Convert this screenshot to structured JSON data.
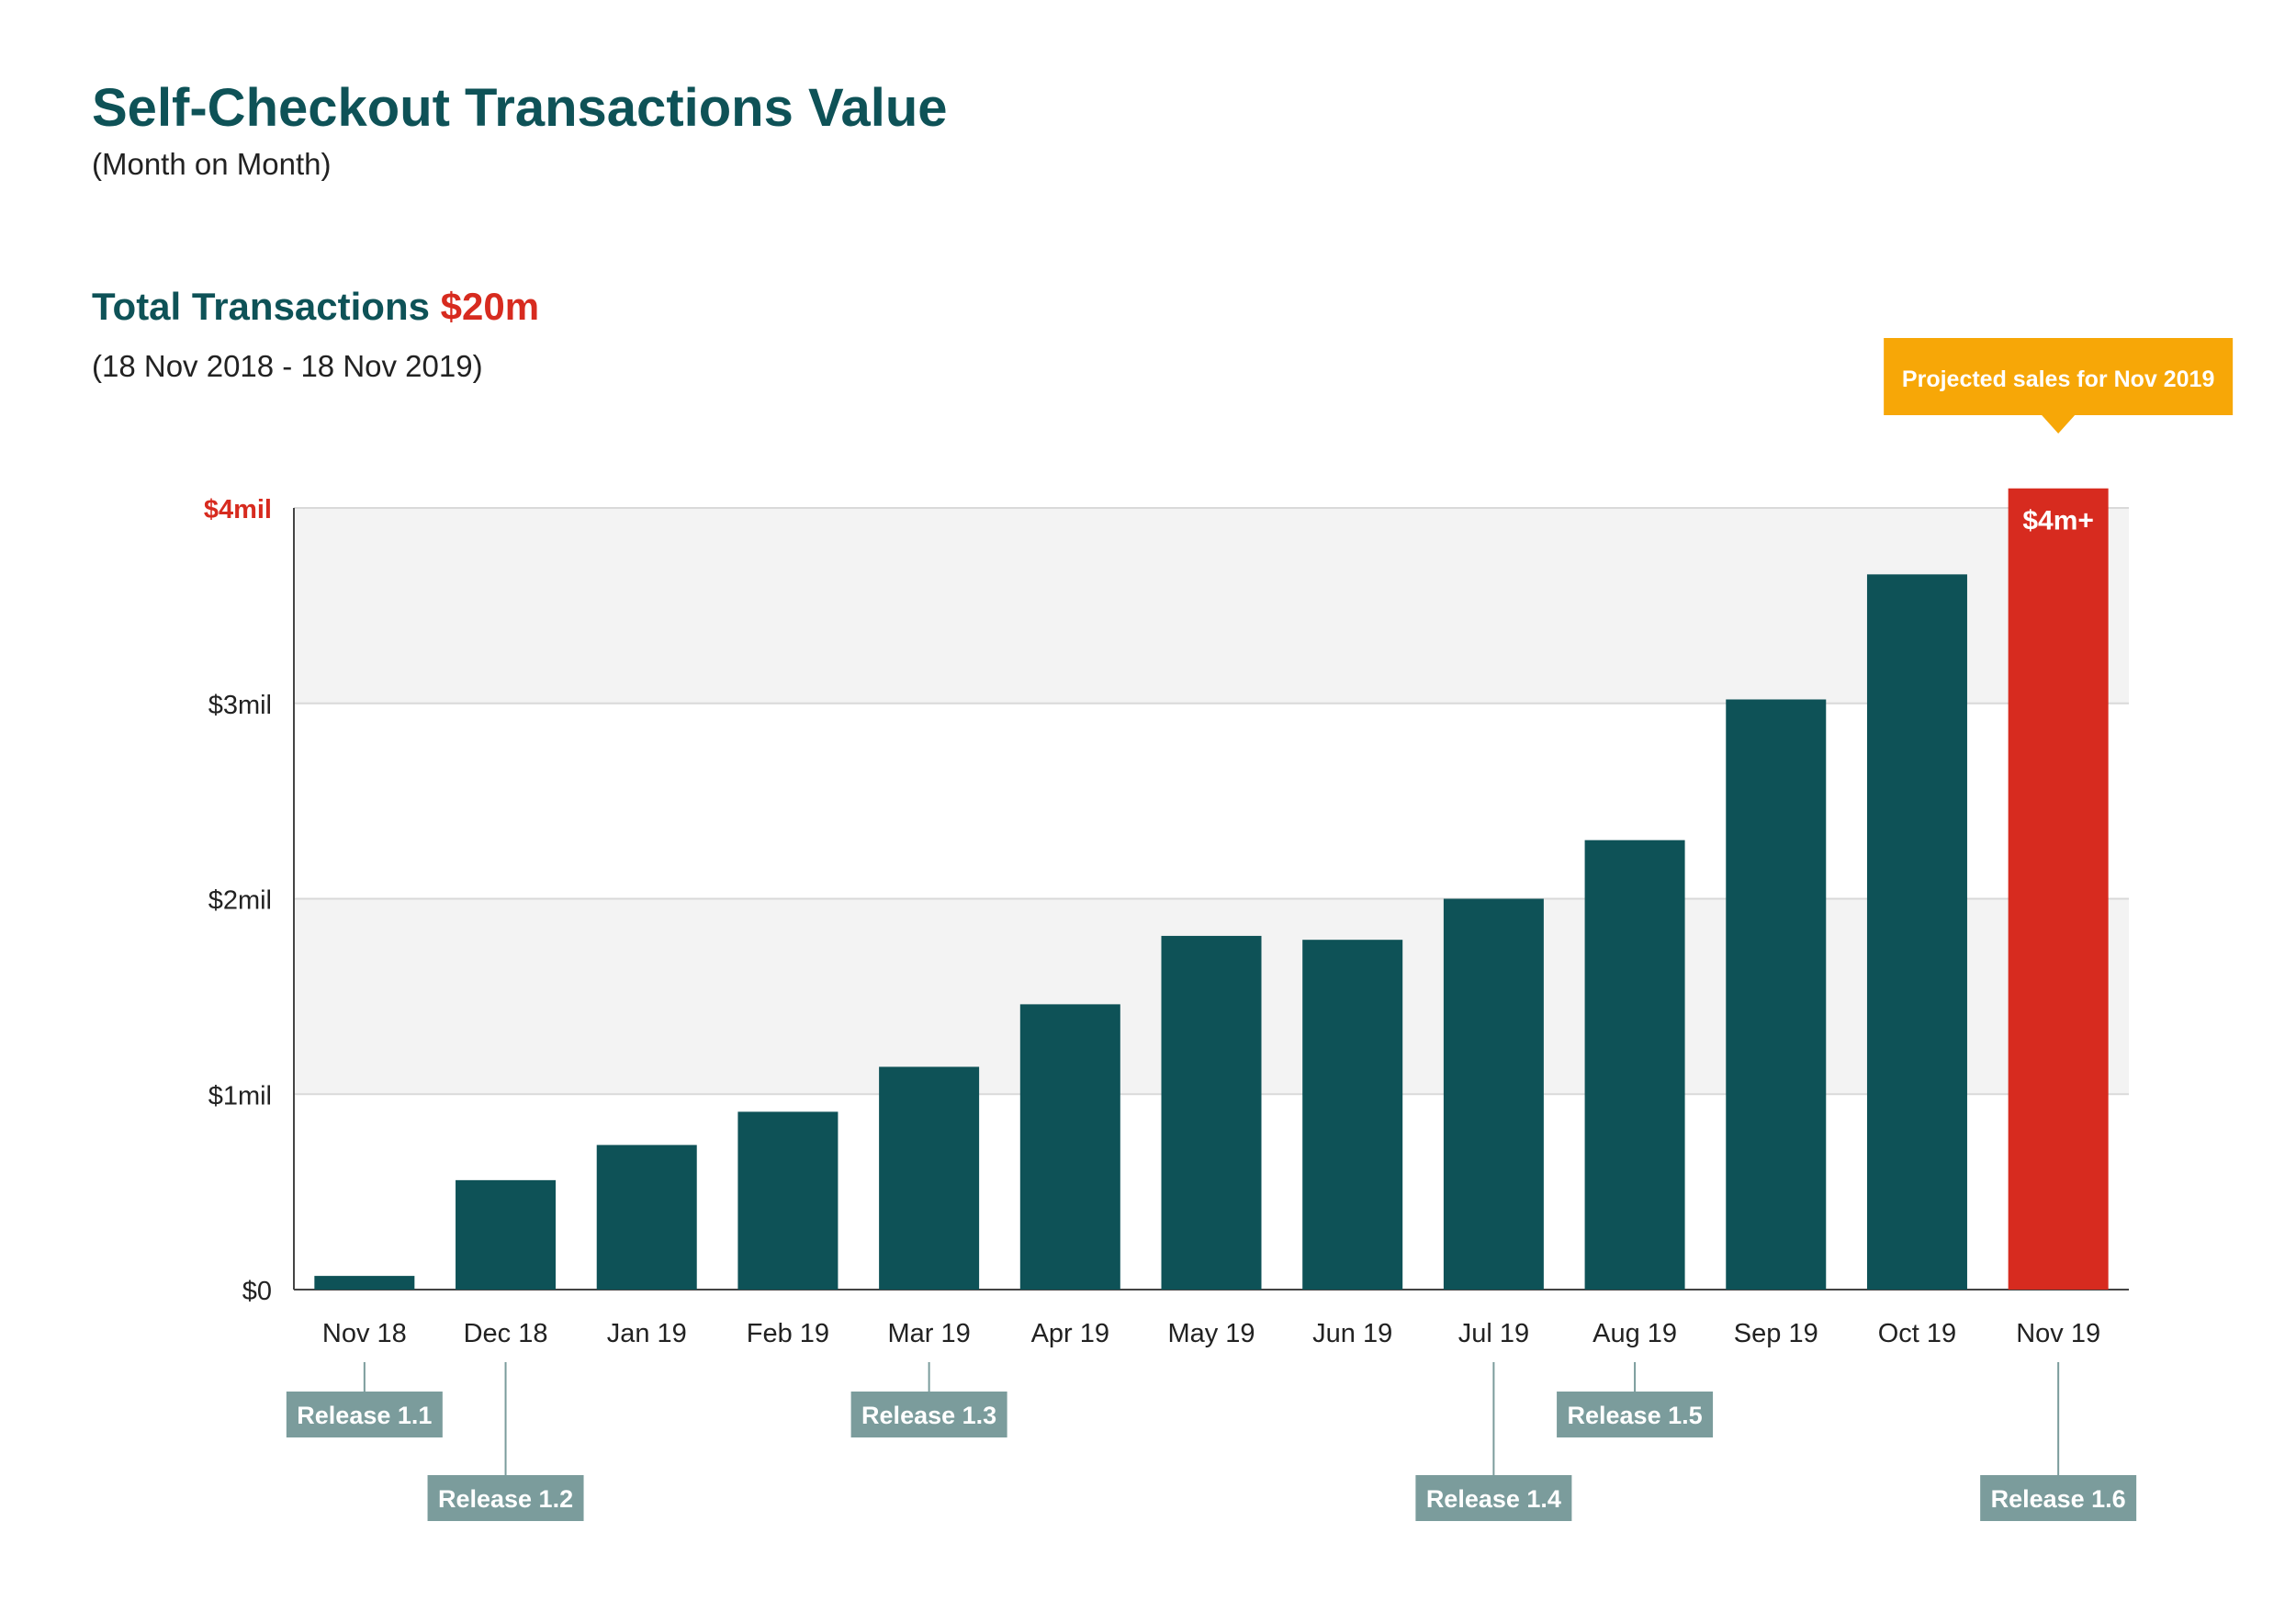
{
  "header": {
    "title": "Self-Checkout Transactions Value",
    "subtitle": "(Month on Month)",
    "total_label": "Total Transactions",
    "total_value": "$20m",
    "date_range": "(18 Nov 2018  - 18 Nov 2019)"
  },
  "colors": {
    "bar": "#0e5257",
    "highlight": "#d72b1f",
    "callout": "#f7a707",
    "release_tag": "#7b9c9c",
    "plot_band": "#f3f3f3",
    "title": "#0e5257"
  },
  "chart_data": {
    "type": "bar",
    "categories": [
      "Nov 18",
      "Dec 18",
      "Jan 19",
      "Feb 19",
      "Mar 19",
      "Apr 19",
      "May 19",
      "Jun 19",
      "Jul 19",
      "Aug 19",
      "Sep 19",
      "Oct 19",
      "Nov 19"
    ],
    "values": [
      0.07,
      0.56,
      0.74,
      0.91,
      1.14,
      1.46,
      1.81,
      1.79,
      2.0,
      2.3,
      3.02,
      3.66,
      4.1
    ],
    "units": "mil",
    "ylim": [
      0,
      4
    ],
    "yticks": [
      {
        "value": 0,
        "label": "$0"
      },
      {
        "value": 1,
        "label": "$1mil"
      },
      {
        "value": 2,
        "label": "$2mil"
      },
      {
        "value": 3,
        "label": "$3mil"
      },
      {
        "value": 4,
        "label": "$4mil"
      }
    ],
    "highlight_index": 12,
    "highlight_bar_label": "$4m+",
    "callout": {
      "text": "Projected sales for Nov 2019",
      "category": "Nov 19"
    },
    "releases": [
      {
        "label": "Release 1.1",
        "category": "Nov 18",
        "row": 1
      },
      {
        "label": "Release 1.2",
        "category": "Dec 18",
        "row": 2
      },
      {
        "label": "Release 1.3",
        "category": "Mar 19",
        "row": 1
      },
      {
        "label": "Release 1.4",
        "category": "Jul 19",
        "row": 2
      },
      {
        "label": "Release 1.5",
        "category": "Aug 19",
        "row": 1
      },
      {
        "label": "Release 1.6",
        "category": "Nov 19",
        "row": 2
      }
    ],
    "grid": true,
    "legend": "none"
  }
}
